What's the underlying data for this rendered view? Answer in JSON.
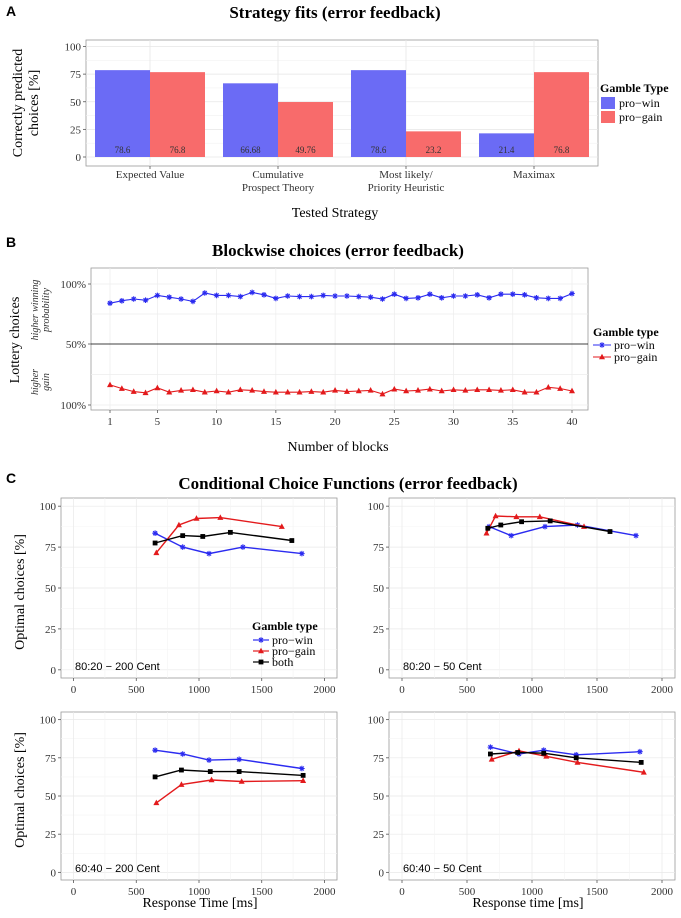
{
  "panel_letters": [
    "A",
    "B",
    "C"
  ],
  "colors": {
    "pro_win": "#6b6bf5",
    "pro_gain": "#f86b6b",
    "line_win": "#2b2bf0",
    "line_gain": "#e31a1c",
    "both": "#000000"
  },
  "chart_data": [
    {
      "type": "bar",
      "title": "Strategy fits (error feedback)",
      "ylabel": "Correctly predicted choices [%]",
      "ylabel_lines": [
        "Correctly predicted",
        "choices [%]"
      ],
      "xlabel": "Tested Strategy",
      "categories": [
        "Expected Value",
        "Cumulative Prospect Theory",
        "Most likely/ Priority Heuristic",
        "Maximax"
      ],
      "category_lines": [
        [
          "Expected Value"
        ],
        [
          "Cumulative",
          "Prospect Theory"
        ],
        [
          "Most likely/",
          "Priority Heuristic"
        ],
        [
          "Maximax"
        ]
      ],
      "series": [
        {
          "name": "pro−win",
          "values": [
            78.6,
            66.68,
            78.6,
            21.4
          ]
        },
        {
          "name": "pro−gain",
          "values": [
            76.8,
            49.76,
            23.2,
            76.8
          ]
        }
      ],
      "value_labels": [
        [
          "78.6",
          "66.68",
          "78.6",
          "21.4"
        ],
        [
          "76.8",
          "49.76",
          "23.2",
          "76.8"
        ]
      ],
      "yticks": [
        0,
        25,
        50,
        75,
        100
      ],
      "ylim": [
        0,
        100
      ],
      "legend_title": "Gamble Type",
      "legend_position": "right"
    },
    {
      "type": "line",
      "title": "Blockwise choices (error feedback)",
      "ylabel": "Lottery choices",
      "ylabel_upper": [
        "higher winning",
        "probability"
      ],
      "ylabel_lower": [
        "higher",
        "gain"
      ],
      "xlabel": "Number of blocks",
      "xticks": [
        1,
        5,
        10,
        15,
        20,
        25,
        30,
        35,
        40
      ],
      "ytick_labels": [
        "100%",
        "50%",
        "100%"
      ],
      "note": "y values in percent of lottery choices: pro-win series plotted upward toward 100% (higher winning probability), pro-gain series plotted downward toward 100% (higher gain)",
      "x": [
        1,
        2,
        3,
        4,
        5,
        6,
        7,
        8,
        9,
        10,
        11,
        12,
        13,
        14,
        15,
        16,
        17,
        18,
        19,
        20,
        21,
        22,
        23,
        24,
        25,
        26,
        27,
        28,
        29,
        30,
        31,
        32,
        33,
        34,
        35,
        36,
        37,
        38,
        39,
        40
      ],
      "series": [
        {
          "name": "pro−win",
          "direction": "up",
          "values": [
            84,
            86,
            87.5,
            86.5,
            90.5,
            89,
            87.5,
            85.5,
            92.5,
            90.5,
            90.5,
            89.5,
            93,
            91,
            88,
            90,
            89.5,
            89.5,
            90.5,
            90,
            90,
            89.5,
            89,
            87.5,
            91.5,
            88,
            88.5,
            91.5,
            88.5,
            90,
            90,
            91,
            88.5,
            91.5,
            91.5,
            91,
            88.5,
            88,
            88,
            92
          ]
        },
        {
          "name": "pro−gain",
          "direction": "down",
          "values": [
            83.5,
            86.5,
            89,
            90,
            86,
            89.5,
            88,
            87.5,
            89.5,
            88.5,
            89.5,
            87.5,
            88,
            89,
            89.5,
            89.5,
            89.5,
            89,
            89.5,
            88,
            89,
            88.5,
            88,
            91,
            87,
            88.5,
            88,
            87,
            88.5,
            87.5,
            88,
            87.5,
            87.5,
            88,
            87.5,
            89.5,
            89.5,
            85.5,
            86.5,
            88.5
          ]
        }
      ],
      "legend_title": "Gamble type",
      "legend_position": "right"
    },
    {
      "type": "line",
      "title": "Conditional Choice Functions (error feedback)",
      "ylabel": "Optimal choices [%]",
      "xlabel_left": "Response Time [ms]",
      "xlabel_right": "Response time [ms]",
      "xticks": [
        0,
        500,
        1000,
        1500,
        2000
      ],
      "yticks": [
        0,
        25,
        50,
        75,
        100
      ],
      "xlim": [
        -100,
        2100
      ],
      "ylim": [
        -5,
        105
      ],
      "legend_title": "Gamble type",
      "legend_position": "inside top-right of first subplot",
      "legend_labels": [
        "pro−win",
        "pro−gain",
        "both"
      ],
      "subplots": [
        {
          "label": "80:20 − 200 Cent",
          "series": [
            {
              "name": "pro−win",
              "x": [
                650,
                870,
                1080,
                1350,
                1820
              ],
              "y": [
                83.5,
                75,
                71,
                75,
                71
              ]
            },
            {
              "name": "pro−gain",
              "x": [
                660,
                840,
                980,
                1170,
                1660
              ],
              "y": [
                71.5,
                88.5,
                92.5,
                93,
                87.5
              ]
            },
            {
              "name": "both",
              "x": [
                650,
                870,
                1030,
                1250,
                1740
              ],
              "y": [
                77.5,
                82,
                81.5,
                84,
                79
              ]
            }
          ]
        },
        {
          "label": "80:20 − 50 Cent",
          "series": [
            {
              "name": "pro−win",
              "x": [
                670,
                840,
                1100,
                1350,
                1800
              ],
              "y": [
                87.5,
                82,
                87.5,
                88.5,
                82
              ]
            },
            {
              "name": "pro−gain",
              "x": [
                650,
                720,
                880,
                1060,
                1400
              ],
              "y": [
                83.5,
                94,
                93.5,
                93.5,
                87.5
              ]
            },
            {
              "name": "both",
              "x": [
                660,
                760,
                920,
                1140,
                1600
              ],
              "y": [
                86.5,
                88.5,
                90.5,
                91,
                84.5
              ]
            }
          ]
        },
        {
          "label": "60:40 − 200 Cent",
          "series": [
            {
              "name": "pro−win",
              "x": [
                650,
                870,
                1080,
                1320,
                1820
              ],
              "y": [
                80,
                77.5,
                73.5,
                74,
                68
              ]
            },
            {
              "name": "pro−gain",
              "x": [
                660,
                860,
                1100,
                1340,
                1830
              ],
              "y": [
                45.5,
                57.5,
                60.5,
                59.5,
                60
              ]
            },
            {
              "name": "both",
              "x": [
                650,
                860,
                1090,
                1320,
                1830
              ],
              "y": [
                62.5,
                67,
                66,
                66,
                63.5
              ]
            }
          ]
        },
        {
          "label": "60:40 − 50 Cent",
          "series": [
            {
              "name": "pro−win",
              "x": [
                680,
                900,
                1090,
                1340,
                1830
              ],
              "y": [
                82,
                77.5,
                80,
                77,
                79
              ]
            },
            {
              "name": "pro−gain",
              "x": [
                690,
                900,
                1110,
                1350,
                1860
              ],
              "y": [
                74,
                79.5,
                76,
                72,
                65.5
              ]
            },
            {
              "name": "both",
              "x": [
                680,
                890,
                1090,
                1340,
                1840
              ],
              "y": [
                77.5,
                78.5,
                78,
                75,
                72
              ]
            }
          ]
        }
      ]
    }
  ]
}
